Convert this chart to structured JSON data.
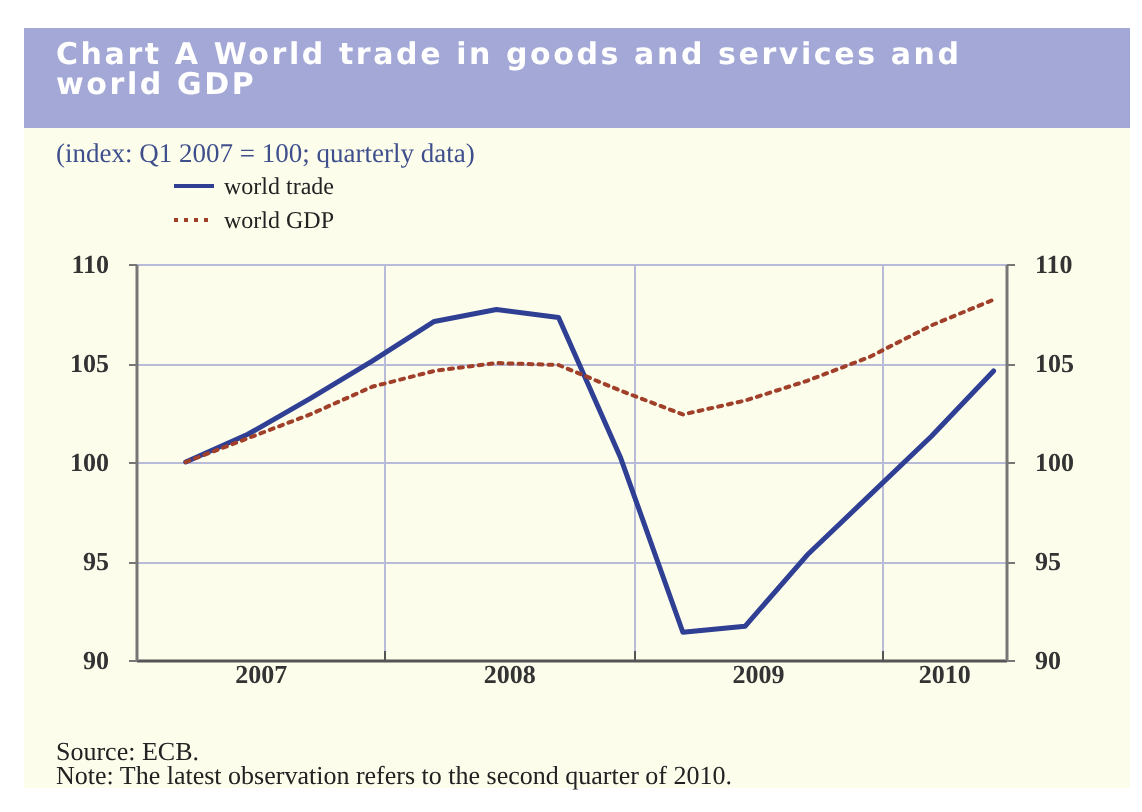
{
  "chart_data": {
    "type": "line",
    "title": "Chart A World trade in goods and services and world GDP",
    "subtitle": "(index: Q1 2007 = 100; quarterly data)",
    "x": [
      2007.2,
      2007.45,
      2007.7,
      2007.95,
      2008.2,
      2008.45,
      2008.7,
      2008.95,
      2009.2,
      2009.45,
      2009.7,
      2009.95,
      2010.2,
      2010.45
    ],
    "series": [
      {
        "name": "world trade",
        "color": "#2e3f94",
        "line_style": "solid",
        "values": [
          100,
          101.4,
          103.2,
          105.1,
          107.1,
          107.7,
          107.3,
          100.2,
          91.4,
          91.7,
          95.3,
          98.3,
          101.3,
          104.6
        ]
      },
      {
        "name": "world GDP",
        "color": "#a0402a",
        "line_style": "dotted",
        "values": [
          100,
          101.2,
          102.4,
          103.8,
          104.6,
          105.0,
          104.9,
          103.6,
          102.4,
          103.1,
          104.1,
          105.3,
          106.9,
          108.2
        ]
      }
    ],
    "xlim": [
      2007,
      2010.5
    ],
    "xticks": [
      {
        "value": 2007,
        "label": null
      },
      {
        "value": 2007.5,
        "label": "2007"
      },
      {
        "value": 2008,
        "label": null
      },
      {
        "value": 2008.5,
        "label": "2008"
      },
      {
        "value": 2009,
        "label": null
      },
      {
        "value": 2009.5,
        "label": "2009"
      },
      {
        "value": 2010,
        "label": null
      },
      {
        "value": 2010.25,
        "label": "2010"
      }
    ],
    "ylim": [
      90,
      110
    ],
    "yticks": [
      90,
      95,
      100,
      105,
      110
    ],
    "y2lim": [
      90,
      110
    ],
    "y2ticks": [
      90,
      95,
      100,
      105,
      110
    ],
    "grid": true,
    "legend": "top left",
    "annotations": [
      "Source: ECB.",
      "Note: The latest observation refers to the second quarter of 2010."
    ]
  }
}
